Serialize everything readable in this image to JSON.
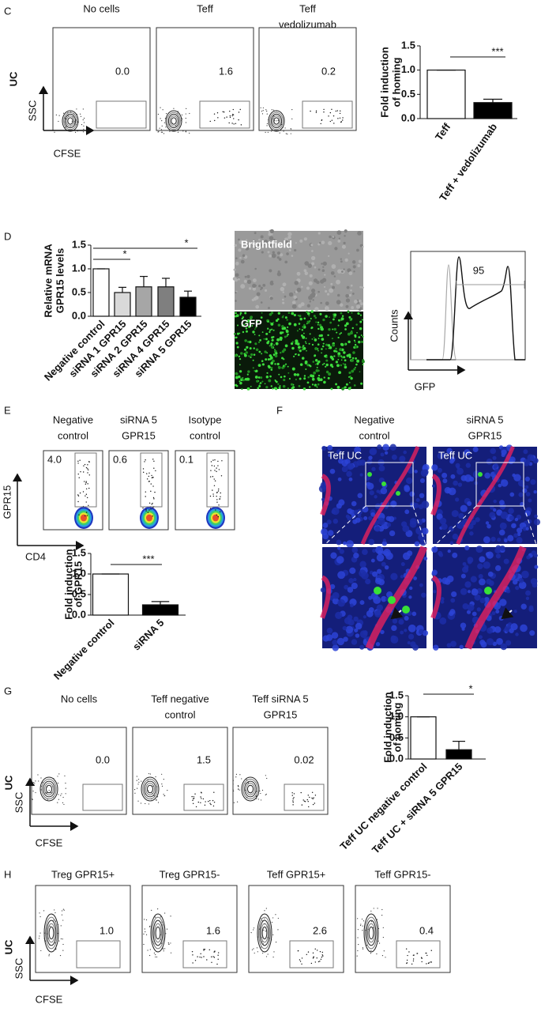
{
  "C": {
    "letter": "C",
    "row_label": "UC",
    "y_axis": "SSC",
    "x_axis": "CFSE",
    "plots": [
      {
        "title": [
          "No cells"
        ],
        "gate_value": "0.0"
      },
      {
        "title": [
          "Teff"
        ],
        "gate_value": "1.6"
      },
      {
        "title": [
          "Teff",
          "vedolizumab"
        ],
        "gate_value": "0.2"
      }
    ],
    "chart": {
      "type": "bar",
      "ylabel": [
        "Fold induction",
        "of homing"
      ],
      "categories": [
        "Teff",
        "Teff + vedolizumab"
      ],
      "values": [
        1.0,
        0.33
      ],
      "errors": [
        0,
        0.07
      ],
      "colors": [
        "#ffffff",
        "#000000"
      ],
      "ylim": [
        0,
        1.5
      ],
      "yticks": [
        {
          "value": 0,
          "label": "0.0"
        },
        0.5,
        {
          "value": 1,
          "label": "1.0"
        },
        1.5
      ],
      "significance": [
        "***"
      ]
    }
  },
  "D": {
    "letter": "D",
    "chart": {
      "type": "bar",
      "ylabel": [
        "Relative mRNA",
        "GPR15 levels"
      ],
      "categories": [
        "Negative control",
        "siRNA 1 GPR15",
        "siRNA 2 GPR15",
        "siRNA 4 GPR15",
        "siRNA 5 GPR15"
      ],
      "values": [
        1.0,
        0.5,
        0.62,
        0.62,
        0.4
      ],
      "errors": [
        0,
        0.11,
        0.22,
        0.18,
        0.13
      ],
      "colors": [
        "#ffffff",
        "#d9d9d9",
        "#a6a6a6",
        "#7f7f7f",
        "#000000"
      ],
      "ylim": [
        0,
        1.5
      ],
      "yticks": [
        {
          "value": 0,
          "label": "0.0"
        },
        0.5,
        {
          "value": 1,
          "label": "1.0"
        },
        1.5
      ],
      "significance": [
        "*",
        "*"
      ]
    },
    "image_labels": [
      "Brightfield",
      "GFP"
    ],
    "histogram": {
      "gate_value": "95",
      "y_axis": "Counts",
      "x_axis": "GFP"
    }
  },
  "E": {
    "letter": "E",
    "y_axis": "GPR15",
    "x_axis": "CD4",
    "plots": [
      {
        "title": [
          "Negative",
          "control"
        ],
        "gate_value": "4.0"
      },
      {
        "title": [
          "siRNA 5",
          "GPR15"
        ],
        "gate_value": "0.6"
      },
      {
        "title": [
          "Isotype",
          "control"
        ],
        "gate_value": "0.1"
      }
    ],
    "chart": {
      "type": "bar",
      "ylabel": [
        "Fold induction",
        "of GPR15"
      ],
      "categories": [
        "Negative control",
        "siRNA 5"
      ],
      "values": [
        1.0,
        0.25
      ],
      "errors": [
        0,
        0.08
      ],
      "colors": [
        "#ffffff",
        "#000000"
      ],
      "ylim": [
        0,
        1.5
      ],
      "yticks": [
        {
          "value": 0,
          "label": "0.0"
        },
        0.5,
        {
          "value": 1,
          "label": "1.0"
        },
        1.5
      ],
      "significance": [
        "***"
      ]
    }
  },
  "F": {
    "letter": "F",
    "columns": [
      {
        "title": [
          "Negative",
          "control"
        ],
        "label": "Teff UC"
      },
      {
        "title": [
          "siRNA 5",
          "GPR15"
        ],
        "label": "Teff UC"
      }
    ]
  },
  "G": {
    "letter": "G",
    "row_label": "UC",
    "y_axis": "SSC",
    "x_axis": "CFSE",
    "plots": [
      {
        "title": [
          "No cells"
        ],
        "gate_value": "0.0"
      },
      {
        "title": [
          "Teff negative",
          "control"
        ],
        "gate_value": "1.5"
      },
      {
        "title": [
          "Teff siRNA 5",
          "GPR15"
        ],
        "gate_value": "0.02"
      }
    ],
    "chart": {
      "type": "bar",
      "ylabel": [
        "Fold induction",
        "of homing"
      ],
      "categories": [
        "Teff UC negative control",
        "Teff UC + siRNA 5 GPR15"
      ],
      "values": [
        1.0,
        0.22
      ],
      "errors": [
        0,
        0.2
      ],
      "colors": [
        "#ffffff",
        "#000000"
      ],
      "ylim": [
        0,
        1.5
      ],
      "yticks": [
        {
          "value": 0,
          "label": "0.0"
        },
        0.5,
        {
          "value": 1,
          "label": "1.0"
        },
        1.5
      ],
      "significance": [
        "*"
      ]
    }
  },
  "H": {
    "letter": "H",
    "row_label": "UC",
    "y_axis": "SSC",
    "x_axis": "CFSE",
    "plots": [
      {
        "title": [
          "Treg GPR15+"
        ],
        "gate_value": "1.0"
      },
      {
        "title": [
          "Treg GPR15-"
        ],
        "gate_value": "1.6"
      },
      {
        "title": [
          "Teff GPR15+"
        ],
        "gate_value": "2.6"
      },
      {
        "title": [
          "Teff GPR15-"
        ],
        "gate_value": "0.4"
      }
    ]
  }
}
